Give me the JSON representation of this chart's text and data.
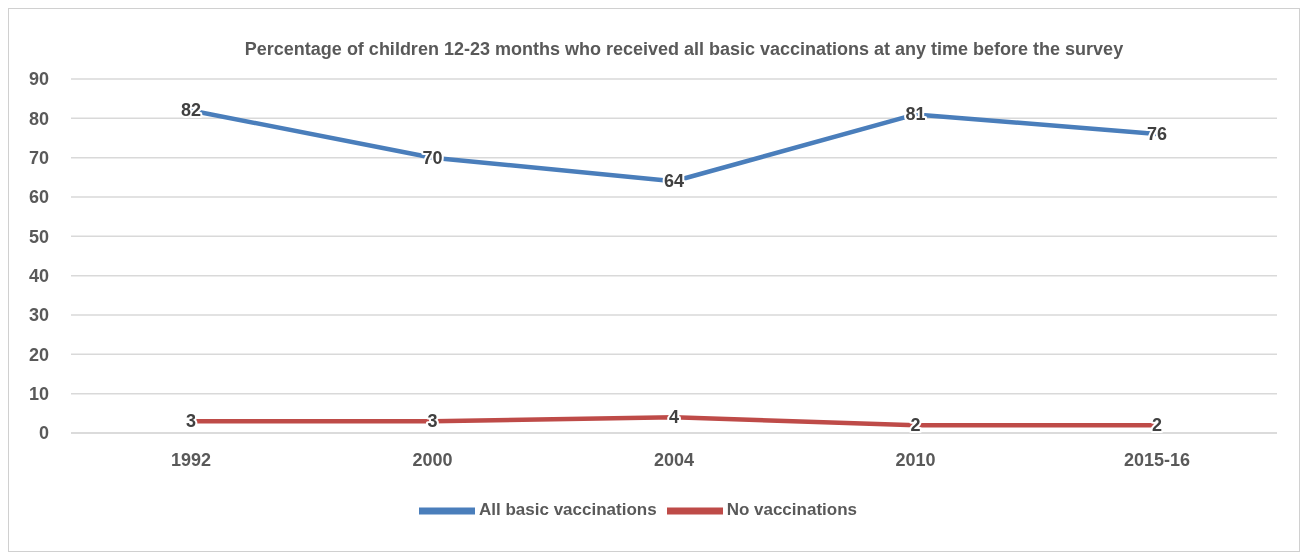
{
  "chart_data": {
    "type": "line",
    "title": "Percentage of children 12-23 months who received all basic vaccinations at any time before the survey",
    "categories": [
      "1992",
      "2000",
      "2004",
      "2010",
      "2015-16"
    ],
    "series": [
      {
        "name": "All basic vaccinations",
        "color": "#4a7ebb",
        "values": [
          82,
          70,
          64,
          81,
          76
        ]
      },
      {
        "name": "No vaccinations",
        "color": "#be4b48",
        "values": [
          3,
          3,
          4,
          2,
          2
        ]
      }
    ],
    "ylim": [
      0,
      90
    ],
    "yticks": [
      0,
      10,
      20,
      30,
      40,
      50,
      60,
      70,
      80,
      90
    ],
    "grid": "y",
    "legend": "bottom",
    "data_labels": true,
    "marker": "none",
    "line_style": "solid"
  }
}
